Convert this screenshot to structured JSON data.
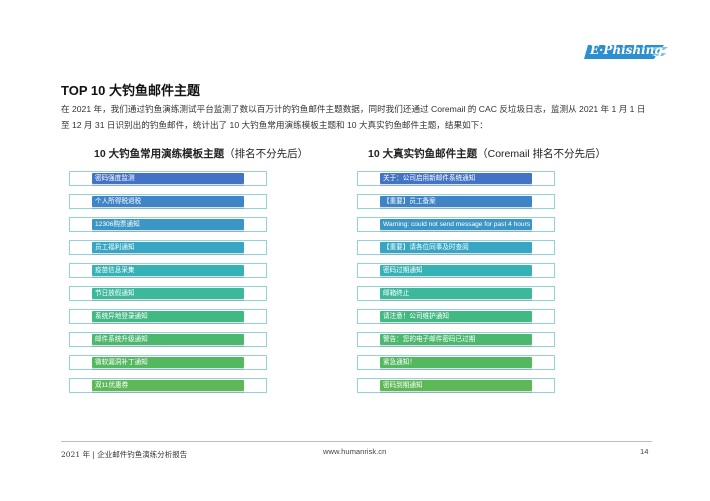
{
  "logo": {
    "text": "E·Phishing"
  },
  "section": {
    "title": "TOP 10 大钓鱼邮件主题",
    "paragraph": "在 2021 年，我们通过钓鱼演练测试平台监测了数以百万计的钓鱼邮件主题数据，同时我们还通过 Coremail 的 CAC 反垃圾日志，监测从 2021 年 1 月 1 日至 12 月 31 日识别出的钓鱼邮件，统计出了 10 大钓鱼常用演练模板主题和 10 大真实钓鱼邮件主题，结果如下："
  },
  "left_column": {
    "heading_bold": "10 大钓鱼常用演练模板主题",
    "heading_note": "（排名不分先后）",
    "items": [
      {
        "label": "密码强度监测",
        "color": "#4472c4"
      },
      {
        "label": "个人所得税退税",
        "color": "#3f84c6"
      },
      {
        "label": "12306购票通知",
        "color": "#3b96c6"
      },
      {
        "label": "员工福利通知",
        "color": "#37a6c4"
      },
      {
        "label": "疫苗信息采集",
        "color": "#35b2b5"
      },
      {
        "label": "节日放假通知",
        "color": "#3cb89b"
      },
      {
        "label": "系统异地登录通知",
        "color": "#42b983"
      },
      {
        "label": "邮件系统升级通知",
        "color": "#4bb76f"
      },
      {
        "label": "微软漏洞补丁通知",
        "color": "#54b860"
      },
      {
        "label": "双11优惠券",
        "color": "#5cb956"
      }
    ]
  },
  "right_column": {
    "heading_bold": "10 大真实钓鱼邮件主题",
    "heading_note": "（Coremail 排名不分先后）",
    "items": [
      {
        "label": "关于：公司启用新邮件系统通知",
        "color": "#4472c4"
      },
      {
        "label": "【重要】员工备案",
        "color": "#3f84c6"
      },
      {
        "label": "Warning: could not send message for past 4 hours",
        "color": "#3b96c6"
      },
      {
        "label": "【重要】请各位同事及时查阅",
        "color": "#37a6c4"
      },
      {
        "label": "密码过期通知",
        "color": "#35b2b5"
      },
      {
        "label": "邮箱终止",
        "color": "#3cb89b"
      },
      {
        "label": "请注意！公司维护通知",
        "color": "#42b983"
      },
      {
        "label": "警告：您的电子邮件密码已过期",
        "color": "#4bb76f"
      },
      {
        "label": "紧急通知！",
        "color": "#54b860"
      },
      {
        "label": "密码到期通知",
        "color": "#5cb956"
      }
    ]
  },
  "footer": {
    "left": "2021 年 | 企业邮件钓鱼演练分析报告",
    "center": "www.humanrisk.cn",
    "page": "14"
  }
}
